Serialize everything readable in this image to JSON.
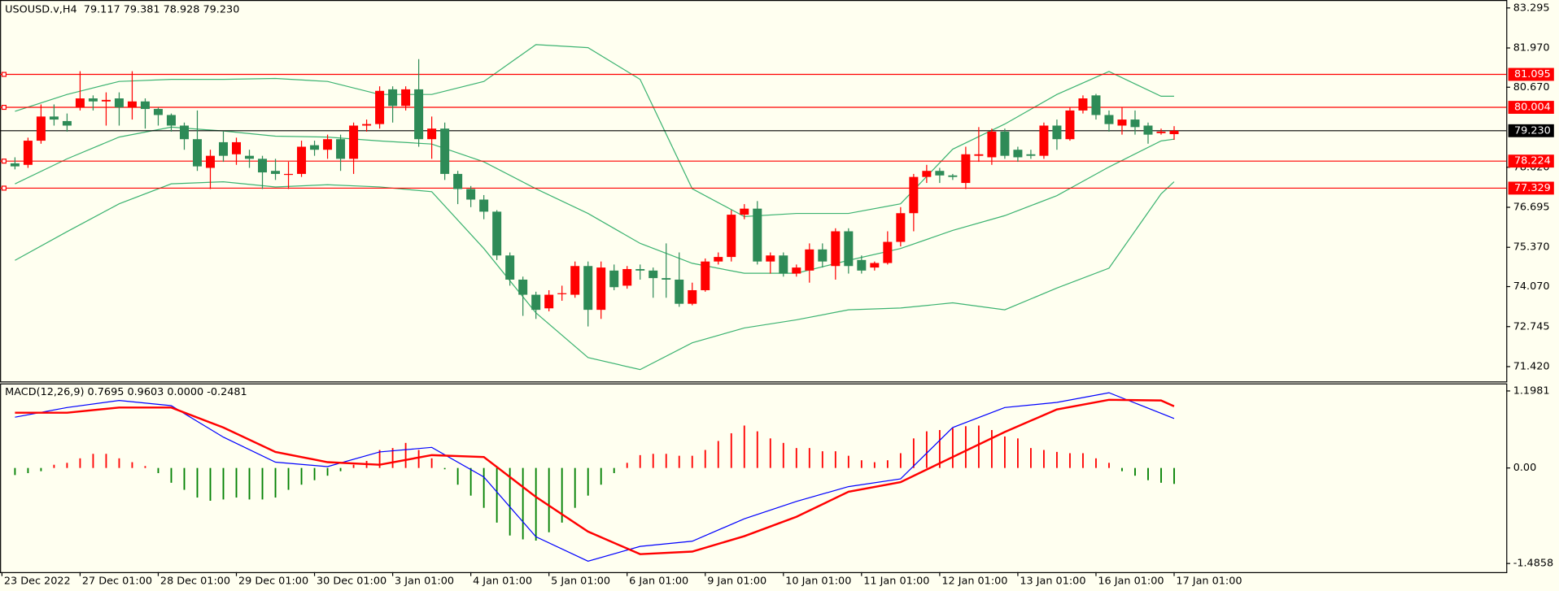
{
  "chart_data": [
    {
      "type": "candlestick",
      "title": "USOUSD.v,H4  79.117 79.381 78.928 79.230",
      "up_color": "#ff0000",
      "down_color": "#2e8b57",
      "open": [
        78.15,
        78.1,
        78.9,
        79.7,
        79.55,
        80.0,
        80.3,
        80.2,
        80.3,
        80.0,
        80.2,
        79.95,
        79.75,
        79.4,
        78.95,
        78.0,
        78.85,
        78.45,
        78.4,
        78.3,
        77.9,
        77.8,
        77.8,
        78.75,
        78.6,
        78.95,
        78.3,
        79.4,
        79.45,
        80.6,
        80.05,
        80.6,
        78.95,
        79.3,
        77.8,
        77.3,
        76.95,
        76.55,
        75.1,
        74.3,
        73.8,
        73.35,
        73.85,
        73.8,
        74.75,
        73.3,
        74.6,
        74.1,
        74.65,
        74.6,
        74.35,
        74.3,
        73.5,
        73.95,
        74.9,
        75.05,
        76.45,
        76.65,
        74.9,
        75.1,
        74.5,
        74.6,
        75.3,
        74.75,
        75.9,
        74.95,
        74.7,
        74.85,
        75.55,
        76.5,
        77.7,
        77.9,
        77.75,
        77.5,
        78.4,
        78.35,
        79.2,
        78.6,
        78.45,
        78.4,
        79.4,
        78.95,
        79.9,
        80.4,
        79.75,
        79.4,
        79.6,
        79.4,
        79.15,
        79.117
      ],
      "high": [
        78.35,
        79.0,
        80.1,
        80.1,
        79.8,
        81.2,
        80.4,
        80.5,
        80.5,
        81.2,
        80.3,
        80.0,
        79.8,
        79.5,
        79.9,
        78.6,
        79.2,
        79.0,
        78.6,
        78.4,
        78.3,
        78.2,
        78.9,
        78.9,
        79.1,
        79.1,
        79.5,
        79.6,
        80.7,
        80.7,
        80.7,
        81.6,
        79.7,
        79.5,
        77.9,
        77.4,
        77.1,
        76.6,
        75.2,
        74.4,
        73.9,
        73.95,
        74.1,
        74.9,
        74.9,
        74.9,
        74.8,
        74.75,
        74.8,
        74.7,
        75.5,
        75.2,
        74.2,
        75.0,
        75.2,
        76.6,
        76.8,
        76.9,
        75.2,
        75.2,
        74.8,
        75.5,
        75.5,
        76.0,
        76.0,
        75.1,
        74.9,
        75.9,
        76.7,
        77.8,
        78.1,
        78.0,
        77.8,
        78.7,
        79.35,
        79.3,
        79.3,
        78.7,
        78.6,
        79.5,
        79.6,
        80.0,
        80.4,
        80.45,
        79.9,
        80.0,
        79.9,
        79.5,
        79.3,
        79.381
      ],
      "low": [
        77.95,
        78.0,
        78.8,
        79.4,
        79.2,
        79.9,
        79.9,
        79.4,
        79.4,
        79.6,
        79.3,
        79.4,
        79.2,
        78.6,
        77.9,
        77.3,
        78.2,
        78.1,
        78.0,
        77.3,
        77.6,
        77.3,
        77.7,
        78.4,
        78.3,
        77.9,
        77.8,
        79.2,
        79.3,
        79.5,
        79.9,
        78.7,
        78.3,
        77.6,
        76.8,
        76.7,
        76.3,
        74.95,
        74.1,
        73.1,
        73.0,
        73.25,
        73.6,
        73.7,
        72.75,
        73.0,
        73.95,
        74.0,
        74.3,
        73.7,
        73.7,
        73.4,
        73.45,
        73.9,
        74.8,
        74.9,
        76.3,
        74.8,
        74.5,
        74.4,
        74.4,
        74.2,
        74.7,
        74.3,
        74.5,
        74.5,
        74.6,
        74.8,
        75.4,
        75.9,
        77.5,
        77.5,
        77.6,
        77.3,
        78.2,
        78.1,
        78.3,
        78.2,
        78.3,
        78.3,
        78.6,
        78.9,
        79.8,
        79.6,
        79.2,
        79.1,
        79.1,
        78.8,
        79.1,
        78.928
      ],
      "close": [
        78.05,
        78.9,
        79.7,
        79.6,
        79.4,
        80.3,
        80.2,
        80.25,
        80.0,
        80.2,
        79.95,
        79.75,
        79.4,
        78.95,
        78.05,
        78.4,
        78.4,
        78.85,
        78.3,
        77.85,
        77.8,
        77.8,
        78.7,
        78.6,
        78.95,
        78.3,
        79.4,
        79.45,
        80.55,
        80.05,
        80.6,
        78.95,
        79.3,
        77.8,
        77.3,
        76.95,
        76.55,
        75.1,
        74.3,
        73.8,
        73.3,
        73.8,
        73.85,
        74.75,
        73.3,
        74.7,
        74.05,
        74.65,
        74.6,
        74.35,
        74.3,
        73.5,
        73.95,
        74.9,
        75.05,
        76.45,
        76.65,
        74.9,
        75.1,
        74.5,
        74.7,
        75.3,
        74.9,
        75.9,
        74.75,
        74.6,
        74.85,
        75.55,
        76.5,
        77.7,
        77.9,
        77.75,
        77.7,
        78.45,
        78.45,
        79.2,
        78.4,
        78.35,
        78.4,
        79.4,
        78.95,
        79.9,
        80.3,
        79.75,
        79.45,
        79.6,
        79.35,
        79.1,
        79.2,
        79.23
      ],
      "bands": {
        "color": "#3cb371",
        "x": [
          0,
          4,
          8,
          12,
          16,
          20,
          24,
          28,
          32,
          36,
          40,
          44,
          48,
          52,
          56,
          60,
          64,
          68,
          72,
          76,
          80,
          84,
          88,
          89
        ],
        "upper": [
          79.87,
          80.43,
          80.86,
          80.93,
          80.93,
          80.96,
          80.86,
          80.43,
          80.43,
          80.86,
          82.08,
          81.98,
          80.93,
          77.31,
          76.39,
          76.49,
          76.49,
          76.81,
          78.62,
          79.45,
          80.43,
          81.19,
          80.37,
          80.37
        ],
        "middle": [
          77.47,
          78.3,
          79.02,
          79.35,
          79.22,
          79.05,
          79.02,
          78.89,
          78.79,
          78.2,
          77.31,
          76.49,
          75.5,
          74.84,
          74.51,
          74.51,
          74.94,
          75.33,
          75.93,
          76.42,
          77.08,
          78.03,
          78.89,
          78.95
        ],
        "lower": [
          74.94,
          75.89,
          76.81,
          77.47,
          77.54,
          77.37,
          77.44,
          77.37,
          77.21,
          75.33,
          73.2,
          71.72,
          71.32,
          72.21,
          72.7,
          72.97,
          73.3,
          73.36,
          73.53,
          73.3,
          74.02,
          74.68,
          77.14,
          77.54
        ]
      },
      "levels": {
        "color": "#ff0000",
        "values": [
          81.095,
          80.004,
          78.224,
          77.329
        ]
      },
      "price_line": {
        "color": "#000000",
        "value": 79.23,
        "label": "79.230"
      },
      "xlim": [
        -1.145,
        114.5
      ],
      "ylim": [
        70.93,
        83.525
      ],
      "yticks": [
        83.295,
        {
          "value": 81.97,
          "label": "81.970"
        },
        {
          "value": 80.67,
          "label": "80.670"
        },
        {
          "value": 78.02,
          "label": "78.020"
        },
        76.695,
        {
          "value": 75.37,
          "label": "75.370"
        },
        {
          "value": 74.07,
          "label": "74.070"
        },
        72.745,
        {
          "value": 71.42,
          "label": "71.420"
        }
      ]
    },
    {
      "type": "macd",
      "title": "MACD(12,26,9) 0.7695 0.9603 0.0000 -0.2481",
      "histogram": {
        "up_color": "#ff0000",
        "down_color": "#008000",
        "values": [
          -0.11,
          -0.08,
          -0.05,
          0.05,
          0.08,
          0.15,
          0.22,
          0.22,
          0.15,
          0.09,
          0.03,
          -0.08,
          -0.23,
          -0.34,
          -0.46,
          -0.51,
          -0.49,
          -0.46,
          -0.49,
          -0.49,
          -0.46,
          -0.34,
          -0.26,
          -0.19,
          -0.12,
          -0.05,
          0.05,
          0.11,
          0.28,
          0.31,
          0.39,
          0.28,
          0.15,
          -0.02,
          -0.26,
          -0.43,
          -0.62,
          -0.85,
          -1.05,
          -1.11,
          -1.13,
          -1.0,
          -0.85,
          -0.62,
          -0.43,
          -0.26,
          -0.08,
          0.08,
          0.2,
          0.22,
          0.22,
          0.19,
          0.19,
          0.28,
          0.42,
          0.54,
          0.66,
          0.57,
          0.46,
          0.39,
          0.31,
          0.31,
          0.26,
          0.26,
          0.19,
          0.12,
          0.09,
          0.12,
          0.23,
          0.46,
          0.57,
          0.59,
          0.62,
          0.65,
          0.66,
          0.59,
          0.49,
          0.46,
          0.31,
          0.28,
          0.25,
          0.23,
          0.23,
          0.15,
          0.08,
          -0.05,
          -0.12,
          -0.19,
          -0.23,
          -0.2481
        ]
      },
      "lines": [
        {
          "color": "#0000ff",
          "width": 1,
          "x": [
            0,
            4,
            8,
            12,
            16,
            20,
            24,
            28,
            32,
            36,
            40,
            44,
            48,
            52,
            56,
            60,
            64,
            68,
            72,
            76,
            80,
            84,
            88,
            89
          ],
          "values": [
            0.79,
            0.94,
            1.05,
            0.97,
            0.48,
            0.09,
            0.02,
            0.25,
            0.32,
            -0.14,
            -1.07,
            -1.45,
            -1.22,
            -1.14,
            -0.79,
            -0.52,
            -0.29,
            -0.17,
            0.63,
            0.94,
            1.02,
            1.17,
            0.85,
            0.77
          ]
        },
        {
          "color": "#ff0000",
          "width": 2,
          "x": [
            0,
            4,
            8,
            12,
            16,
            20,
            24,
            28,
            32,
            36,
            40,
            44,
            48,
            52,
            56,
            60,
            64,
            68,
            72,
            76,
            80,
            84,
            88,
            89
          ],
          "values": [
            0.86,
            0.86,
            0.94,
            0.94,
            0.63,
            0.25,
            0.09,
            0.05,
            0.2,
            0.17,
            -0.45,
            -0.99,
            -1.34,
            -1.3,
            -1.06,
            -0.76,
            -0.37,
            -0.22,
            0.17,
            0.56,
            0.91,
            1.06,
            1.05,
            0.96
          ]
        }
      ],
      "xlim": [
        -1.145,
        114.5
      ],
      "ylim": [
        -1.62,
        1.3
      ],
      "yticks": [
        1.1981,
        {
          "value": 0,
          "label": "0.00"
        },
        -1.4858
      ],
      "xticks": [
        {
          "value": -1,
          "label": "23 Dec 2022"
        },
        {
          "value": 5,
          "label": "27 Dec 01:00"
        },
        {
          "value": 11,
          "label": "28 Dec 01:00"
        },
        {
          "value": 17,
          "label": "29 Dec 01:00"
        },
        {
          "value": 23,
          "label": "30 Dec 01:00"
        },
        {
          "value": 29,
          "label": "3 Jan 01:00"
        },
        {
          "value": 35,
          "label": "4 Jan 01:00"
        },
        {
          "value": 41,
          "label": "5 Jan 01:00"
        },
        {
          "value": 47,
          "label": "6 Jan 01:00"
        },
        {
          "value": 53,
          "label": "9 Jan 01:00"
        },
        {
          "value": 59,
          "label": "10 Jan 01:00"
        },
        {
          "value": 65,
          "label": "11 Jan 01:00"
        },
        {
          "value": 71,
          "label": "12 Jan 01:00"
        },
        {
          "value": 77,
          "label": "13 Jan 01:00"
        },
        {
          "value": 83,
          "label": "16 Jan 01:00"
        },
        {
          "value": 89,
          "label": "17 Jan 01:00"
        }
      ]
    }
  ]
}
